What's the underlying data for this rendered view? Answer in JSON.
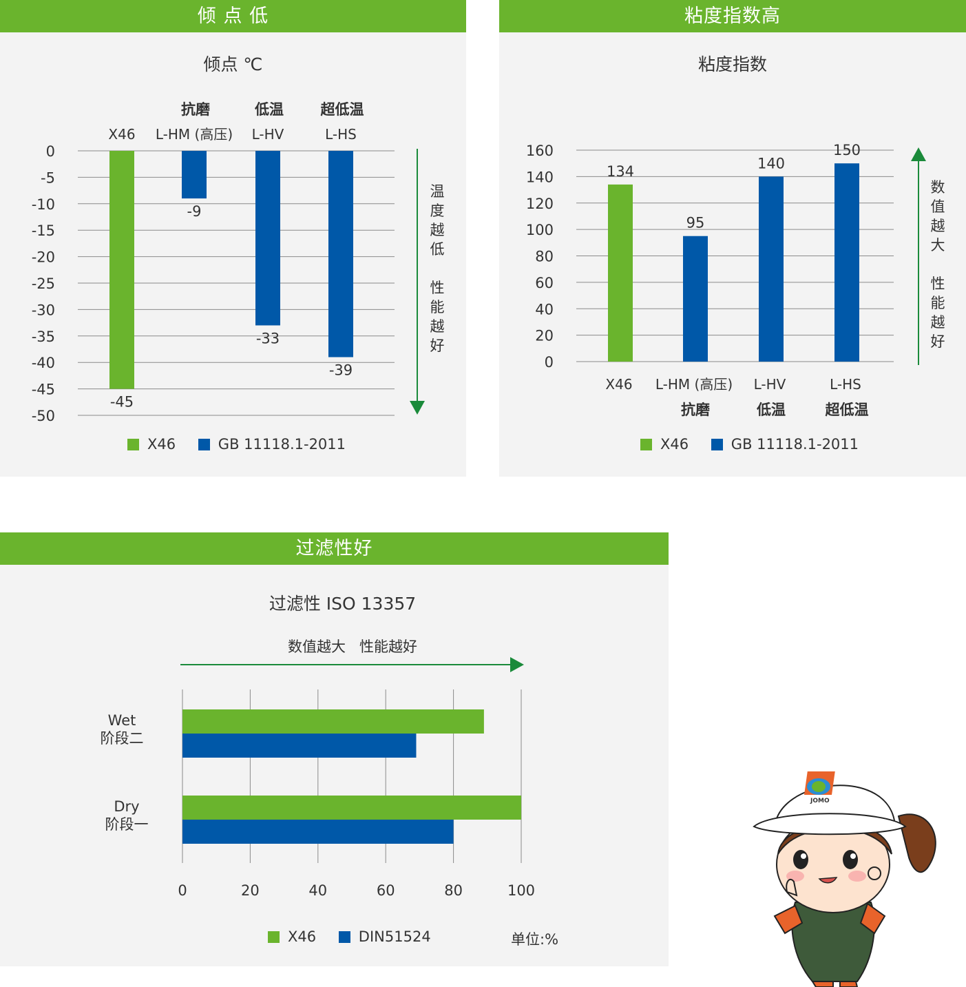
{
  "colors": {
    "green": "#6ab42d",
    "blue": "#0058a8",
    "arrow": "#1a8a3a",
    "panel": "#f3f3f3"
  },
  "panel1": {
    "header": "倾 点 低",
    "title": "倾点 ℃",
    "annotation": [
      "温",
      "度",
      "越",
      "低",
      "性",
      "能",
      "越",
      "好"
    ],
    "legend": [
      "X46",
      "GB 11118.1-2011"
    ]
  },
  "panel2": {
    "header": "粘度指数高",
    "title": "粘度指数",
    "annotation": [
      "数",
      "值",
      "越",
      "大",
      "性",
      "能",
      "越",
      "好"
    ],
    "legend": [
      "X46",
      "GB 11118.1-2011"
    ]
  },
  "panel3": {
    "header": "过滤性好",
    "title": "过滤性 ISO  13357",
    "arrow_label": "数值越大   性能越好",
    "legend": [
      "X46",
      "DIN51524"
    ],
    "unit": "单位:%"
  },
  "chart_data": [
    {
      "type": "bar",
      "title": "倾点 ℃",
      "categories": [
        "X46",
        "L-HM (高压)",
        "L-HV",
        "L-HS"
      ],
      "category_sublabels": [
        "",
        "抗磨",
        "低温",
        "超低温"
      ],
      "values": [
        -45,
        -9,
        -33,
        -39
      ],
      "value_labels": [
        "-45",
        "-9",
        "-33",
        "-39"
      ],
      "series_colors": [
        "green",
        "blue",
        "blue",
        "blue"
      ],
      "ylim": [
        -50,
        0
      ],
      "yticks": [
        "0",
        "-5",
        "-10",
        "-15",
        "-20",
        "-25",
        "-30",
        "-35",
        "-40",
        "-45",
        "-50"
      ],
      "grid": true,
      "legend_position": "bottom"
    },
    {
      "type": "bar",
      "title": "粘度指数",
      "categories": [
        "X46",
        "L-HM (高压)",
        "L-HV",
        "L-HS"
      ],
      "category_sublabels": [
        "",
        "抗磨",
        "低温",
        "超低温"
      ],
      "values": [
        134,
        95,
        140,
        150
      ],
      "value_labels": [
        "134",
        "95",
        "140",
        "150"
      ],
      "series_colors": [
        "green",
        "blue",
        "blue",
        "blue"
      ],
      "ylim": [
        0,
        160
      ],
      "yticks": [
        "0",
        "20",
        "40",
        "60",
        "80",
        "100",
        "120",
        "140",
        "160"
      ],
      "grid": true,
      "legend_position": "bottom"
    },
    {
      "type": "bar",
      "orientation": "horizontal",
      "title": "过滤性 ISO  13357",
      "categories": [
        "Wet\n阶段二",
        "Dry\n阶段一"
      ],
      "series": [
        {
          "name": "X46",
          "values": [
            89,
            100
          ]
        },
        {
          "name": "DIN51524",
          "values": [
            69,
            80
          ]
        }
      ],
      "xlim": [
        0,
        100
      ],
      "xticks": [
        "0",
        "20",
        "40",
        "60",
        "80",
        "100"
      ],
      "grid": true,
      "legend_position": "bottom"
    }
  ]
}
